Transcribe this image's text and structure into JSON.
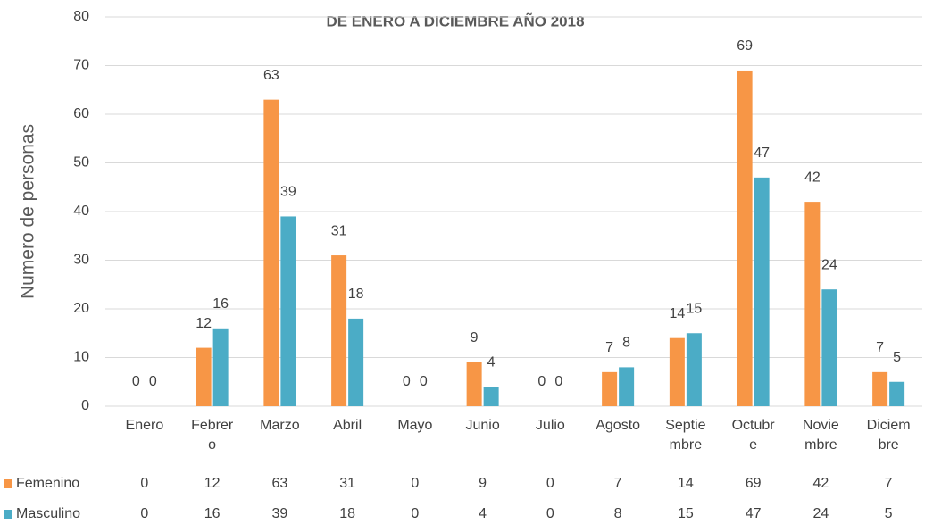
{
  "chart_data": {
    "type": "bar",
    "title": "DE ENERO A DICIEMBRE AÑO 2018",
    "y_label": "Numero de personas",
    "categories": [
      "Enero",
      "Febrero",
      "Marzo",
      "Abril",
      "Mayo",
      "Junio",
      "Julio",
      "Agosto",
      "Septiembre",
      "Octubre",
      "Noviembre",
      "Diciembre"
    ],
    "series": [
      {
        "name": "Femenino",
        "color": "#f79646",
        "values": [
          0,
          12,
          63,
          31,
          0,
          9,
          0,
          7,
          14,
          69,
          42,
          7
        ]
      },
      {
        "name": "Masculino",
        "color": "#4bacc6",
        "values": [
          0,
          16,
          39,
          18,
          0,
          4,
          0,
          8,
          15,
          47,
          24,
          5
        ]
      }
    ],
    "ylim": [
      0,
      80
    ],
    "yticks": [
      0,
      10,
      20,
      30,
      40,
      50,
      60,
      70,
      80
    ],
    "grid": true
  }
}
